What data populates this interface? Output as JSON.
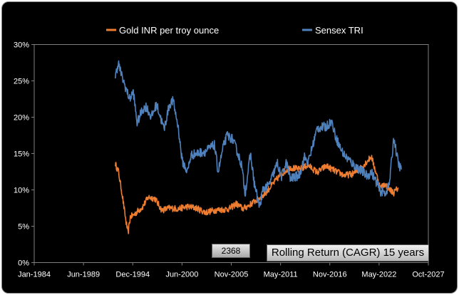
{
  "chart_data": {
    "type": "line",
    "title": "",
    "xlabel": "",
    "ylabel": "",
    "x_tick_labels": [
      "Jan-1984",
      "Jun-1989",
      "Dec-1994",
      "Jun-2000",
      "Nov-2005",
      "May-2011",
      "Nov-2016",
      "May-2022",
      "Oct-2027"
    ],
    "x_range": [
      "1984-01",
      "2027-10"
    ],
    "y_tick_labels": [
      "0%",
      "5%",
      "10%",
      "15%",
      "20%",
      "25%",
      "30%"
    ],
    "ylim": [
      0,
      30
    ],
    "y_unit": "%",
    "grid": false,
    "legend_position": "top",
    "series": [
      {
        "name": "Gold INR per troy ounce",
        "color": "#ed7d31",
        "x": [
          "1993-01",
          "1993-05",
          "1993-10",
          "1994-03",
          "1994-06",
          "1994-09",
          "1995-01",
          "1995-06",
          "1996-01",
          "1996-09",
          "1997-06",
          "1998-03",
          "1999-01",
          "2000-01",
          "2001-01",
          "2002-01",
          "2003-01",
          "2004-01",
          "2005-01",
          "2005-09",
          "2006-06",
          "2007-03",
          "2007-10",
          "2008-09",
          "2009-06",
          "2010-06",
          "2011-06",
          "2012-06",
          "2013-06",
          "2014-06",
          "2015-06",
          "2016-06",
          "2017-06",
          "2018-06",
          "2019-06",
          "2020-06",
          "2021-06",
          "2022-06",
          "2022-12",
          "2023-06",
          "2023-12",
          "2024-06"
        ],
        "values": [
          13.6,
          12.6,
          9.5,
          5.8,
          4.0,
          6.3,
          6.5,
          7.0,
          7.6,
          9.0,
          8.8,
          7.2,
          7.5,
          7.4,
          7.7,
          7.5,
          6.9,
          7.2,
          7.3,
          7.4,
          8.1,
          7.4,
          7.8,
          8.6,
          9.2,
          10.7,
          12.2,
          13.1,
          12.8,
          13.4,
          12.4,
          13.3,
          12.6,
          12.0,
          12.2,
          13.2,
          14.6,
          10.3,
          10.8,
          10.1,
          9.6,
          10.3
        ]
      },
      {
        "name": "Sensex TRI",
        "color": "#4f81bd",
        "x": [
          "1993-01",
          "1993-05",
          "1993-10",
          "1994-03",
          "1994-08",
          "1995-01",
          "1995-06",
          "1996-01",
          "1996-06",
          "1997-01",
          "1997-08",
          "1998-06",
          "1999-01",
          "1999-06",
          "2000-01",
          "2000-06",
          "2001-01",
          "2001-06",
          "2002-01",
          "2003-01",
          "2004-01",
          "2004-06",
          "2005-01",
          "2005-06",
          "2006-01",
          "2006-06",
          "2007-01",
          "2007-06",
          "2008-01",
          "2008-06",
          "2009-01",
          "2009-06",
          "2010-01",
          "2010-06",
          "2011-01",
          "2011-06",
          "2012-01",
          "2012-06",
          "2013-01",
          "2013-06",
          "2014-01",
          "2014-06",
          "2015-06",
          "2016-06",
          "2017-01",
          "2017-06",
          "2018-01",
          "2018-06",
          "2019-06",
          "2020-06",
          "2021-01",
          "2021-06",
          "2022-01",
          "2022-06",
          "2023-01",
          "2023-06",
          "2023-12",
          "2024-06",
          "2024-10"
        ],
        "values": [
          25.5,
          27.5,
          25.5,
          24.0,
          22.5,
          23.5,
          19.2,
          21.0,
          21.5,
          20.0,
          21.8,
          18.3,
          21.7,
          22.3,
          18.5,
          14.0,
          12.5,
          14.8,
          15.0,
          15.3,
          16.2,
          12.5,
          16.0,
          17.5,
          17.0,
          15.7,
          13.5,
          9.5,
          15.0,
          11.0,
          7.6,
          10.2,
          10.5,
          11.8,
          13.7,
          11.7,
          13.8,
          11.5,
          11.8,
          12.0,
          14.5,
          13.8,
          18.5,
          18.7,
          19.5,
          17.5,
          15.7,
          14.8,
          13.5,
          12.5,
          11.9,
          12.5,
          11.0,
          9.8,
          9.6,
          10.8,
          17.2,
          13.6,
          12.8
        ]
      }
    ]
  },
  "overlay": {
    "counter": "2368",
    "caption": "Rolling Return (CAGR) 15 years"
  }
}
